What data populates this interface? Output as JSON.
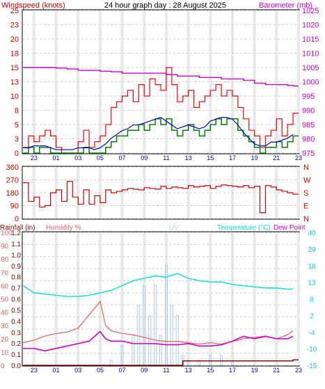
{
  "header": {
    "left": "Windspeed (knots)",
    "center": "24 hour graph day : 28 August 2025",
    "right": "Barometer (mb)"
  },
  "colors": {
    "wind_avg": "#008000",
    "gust": "#ff0000",
    "wind_smooth": "#0000cc",
    "barometer": "#cc00cc",
    "direction": "#cc0000",
    "rain": "#800000",
    "humidity": "#e06060",
    "uv": "#aaccee",
    "temperature": "#00dddd",
    "dewpoint": "#cc00cc",
    "tick_blue": "#0000aa",
    "grid": "#cccccc",
    "band": "#e8e8e8"
  },
  "chart_data": [
    {
      "type": "line",
      "title": "24 hour graph day : 28 August 2025",
      "xlabel": "",
      "grid": true,
      "x_ticks": [
        "23",
        "01",
        "03",
        "05",
        "07",
        "09",
        "11",
        "13",
        "15",
        "17",
        "19",
        "21",
        "23"
      ],
      "x_range": [
        0,
        25
      ],
      "left_axis": {
        "label": "Windspeed (knots)",
        "ticks": [
          "25",
          "23",
          "20",
          "18",
          "15",
          "13",
          "10",
          "8",
          "5",
          "3",
          "0"
        ],
        "ylim": [
          0,
          25
        ]
      },
      "right_axis": {
        "label": "Barometer (mb)",
        "ticks": [
          "1025",
          "1020",
          "1015",
          "1010",
          "1005",
          "1000",
          "995",
          "990",
          "985",
          "980",
          "975"
        ],
        "ylim": [
          975,
          1025
        ]
      },
      "series": [
        {
          "name": "Windspeed (knots)",
          "x": [
            0,
            0.5,
            1,
            1.5,
            2,
            2.5,
            3,
            3.5,
            4,
            4.5,
            5,
            5.5,
            6,
            6.5,
            7,
            7.5,
            8,
            8.5,
            9,
            9.5,
            10,
            10.5,
            11,
            11.5,
            12,
            12.5,
            13,
            13.5,
            14,
            14.5,
            15,
            15.5,
            16,
            16.5,
            17,
            17.5,
            18,
            18.5,
            19,
            19.5,
            20,
            20.5,
            21,
            21.5,
            22,
            22.5,
            23,
            23.5,
            24,
            24.5
          ],
          "values": [
            0,
            1,
            0,
            1,
            1,
            0,
            0,
            0,
            0,
            0,
            0,
            1,
            0,
            0,
            0,
            1,
            2,
            3,
            3,
            4,
            4,
            5,
            4,
            5,
            6,
            5,
            6,
            4,
            3,
            4,
            5,
            4,
            3,
            4,
            5,
            6,
            5,
            6,
            6,
            4,
            3,
            2,
            1,
            0,
            1,
            1,
            2,
            1,
            2,
            3
          ]
        },
        {
          "name": "Gust",
          "x": [
            0,
            0.5,
            1,
            1.5,
            2,
            2.5,
            3,
            3.5,
            4,
            4.5,
            5,
            5.5,
            6,
            6.5,
            7,
            7.5,
            8,
            8.5,
            9,
            9.5,
            10,
            10.5,
            11,
            11.5,
            12,
            12.5,
            13,
            13.5,
            14,
            14.5,
            15,
            15.5,
            16,
            16.5,
            17,
            17.5,
            18,
            18.5,
            19,
            19.5,
            20,
            20.5,
            21,
            21.5,
            22,
            22.5,
            23,
            23.5,
            24,
            24.5
          ],
          "values": [
            1,
            3,
            2,
            3,
            4,
            3,
            1,
            0,
            0,
            0,
            2,
            4,
            1,
            2,
            3,
            5,
            8,
            9,
            10,
            11,
            9,
            12,
            10,
            13,
            12,
            11,
            15,
            12,
            9,
            10,
            11,
            8,
            9,
            10,
            11,
            12,
            10,
            11,
            10,
            8,
            6,
            4,
            3,
            1,
            3,
            4,
            6,
            3,
            5,
            7
          ]
        },
        {
          "name": "Barometer (mb)",
          "x": [
            0,
            1,
            2,
            3,
            4,
            5,
            6,
            7,
            8,
            9,
            10,
            11,
            12,
            13,
            14,
            15,
            16,
            17,
            18,
            19,
            20,
            21,
            22,
            23,
            24,
            24.5
          ],
          "values": [
            1005,
            1005,
            1005,
            1004.8,
            1004.5,
            1004,
            1004,
            1003.7,
            1003.5,
            1003,
            1003,
            1003,
            1003,
            1002.5,
            1002,
            1002,
            1001.5,
            1001.5,
            1001,
            1001,
            1000.5,
            999.5,
            999,
            999,
            998.7,
            998.5
          ]
        }
      ]
    },
    {
      "type": "line",
      "title": "",
      "left_axis": {
        "ticks": [
          "360",
          "270",
          "180",
          "90",
          "0"
        ],
        "ylim": [
          0,
          360
        ]
      },
      "right_axis": {
        "ticks": [
          "N",
          "W",
          "S",
          "E",
          "N"
        ]
      },
      "x_range": [
        0,
        25
      ],
      "series": [
        {
          "name": "Wind direction",
          "x": [
            0,
            0.5,
            1,
            1.5,
            2,
            2.5,
            3,
            3.5,
            4,
            4.5,
            5,
            5.5,
            6,
            6.5,
            7,
            7.5,
            8,
            8.5,
            9,
            9.5,
            10,
            10.5,
            11,
            11.5,
            12,
            12.5,
            13,
            13.5,
            14,
            14.5,
            15,
            15.5,
            16,
            16.5,
            17,
            17.5,
            18,
            18.5,
            19,
            19.5,
            20,
            20.5,
            21,
            21.5,
            22,
            22.5,
            23,
            23.5,
            24,
            24.5
          ],
          "values": [
            250,
            120,
            150,
            80,
            90,
            180,
            200,
            120,
            260,
            150,
            100,
            200,
            100,
            160,
            110,
            200,
            180,
            190,
            200,
            210,
            205,
            200,
            215,
            210,
            205,
            225,
            210,
            220,
            215,
            210,
            230,
            220,
            225,
            230,
            210,
            225,
            235,
            230,
            225,
            220,
            230,
            215,
            225,
            40,
            230,
            220,
            200,
            190,
            180,
            170
          ]
        }
      ]
    },
    {
      "type": "line",
      "title": "",
      "axes_labels": [
        "Rainfall (in)",
        "Humidity %",
        "UV",
        "Temperature (°C)",
        "Dew Point"
      ],
      "axis_rain_ticks": [
        "1.2",
        "1.1",
        "1.0",
        "0.9",
        "0.8",
        "0.7",
        "0.6",
        "0.5",
        "0.4",
        "0.3",
        "0.2",
        "0.1",
        "0.0"
      ],
      "axis_humidity_ticks": [
        "100",
        "90",
        "80",
        "70",
        "60",
        "50",
        "40",
        "30",
        "20",
        "10",
        "0"
      ],
      "axis_temp_ticks": [
        "40",
        "35",
        "30",
        "25",
        "20",
        "15",
        "10",
        "5",
        "0",
        "-5",
        "-10",
        "-15"
      ],
      "axis_temp_side_ticks": [
        "40",
        "29",
        "18",
        "13",
        "8",
        "2",
        "-4",
        "-10",
        "-15"
      ],
      "x_range": [
        0,
        25
      ],
      "series": [
        {
          "name": "Temperature (°C)",
          "x": [
            0,
            1,
            2,
            3,
            4,
            5,
            6,
            7,
            8,
            9,
            10,
            11,
            12,
            13,
            14,
            15,
            16,
            17,
            18,
            19,
            20,
            21,
            22,
            23,
            24,
            24.5
          ],
          "values": [
            18,
            15,
            14.5,
            14,
            13.5,
            13.5,
            14,
            15,
            16,
            18,
            20,
            21,
            22,
            21.5,
            23,
            21,
            20,
            19.5,
            19.5,
            18.5,
            18,
            17.5,
            17,
            17,
            16.5,
            16.5
          ]
        },
        {
          "name": "Humidity %",
          "x": [
            0,
            1,
            2,
            3,
            4,
            5,
            6,
            7,
            7.5,
            8,
            9,
            10,
            11,
            12,
            13,
            14,
            15,
            16,
            17,
            18,
            19,
            20,
            21,
            22,
            23,
            24,
            24.5
          ],
          "values": [
            17,
            19,
            22,
            24,
            25,
            28,
            38,
            48,
            30,
            26,
            24,
            23,
            21,
            19,
            18,
            18,
            17,
            16,
            17,
            16,
            18,
            20,
            21,
            22,
            20,
            23,
            26
          ]
        },
        {
          "name": "Dew Point",
          "x": [
            0,
            1,
            2,
            3,
            4,
            5,
            6,
            7,
            7.5,
            8,
            9,
            10,
            11,
            12,
            13,
            14,
            15,
            16,
            17,
            18,
            19,
            20,
            21,
            22,
            23,
            24,
            24.5
          ],
          "values": [
            -8,
            -8,
            -9,
            -8,
            -7,
            -6,
            -5,
            -1,
            -4,
            -5,
            -5,
            -6,
            -6,
            -6,
            -6.5,
            -6.5,
            -6,
            -7,
            -7,
            -6.5,
            -5,
            -3,
            -4,
            -3,
            -4,
            -4,
            -3
          ]
        },
        {
          "name": "UV",
          "x": [
            7,
            8,
            9,
            10,
            10.5,
            11,
            11.5,
            12,
            12.5,
            13,
            13.5,
            14,
            14.5,
            15,
            16,
            17,
            18,
            19,
            20
          ],
          "values": [
            0,
            0.5,
            2,
            3,
            6,
            8,
            5,
            8,
            3,
            10,
            6,
            5,
            1,
            0.5,
            0.5,
            1,
            1,
            0.5,
            0
          ]
        },
        {
          "name": "Rainfall (in)",
          "x": [
            0,
            13,
            14,
            14.5,
            18,
            24.5
          ],
          "values": [
            0,
            0,
            0,
            0.04,
            0.04,
            0.05
          ]
        }
      ]
    }
  ]
}
